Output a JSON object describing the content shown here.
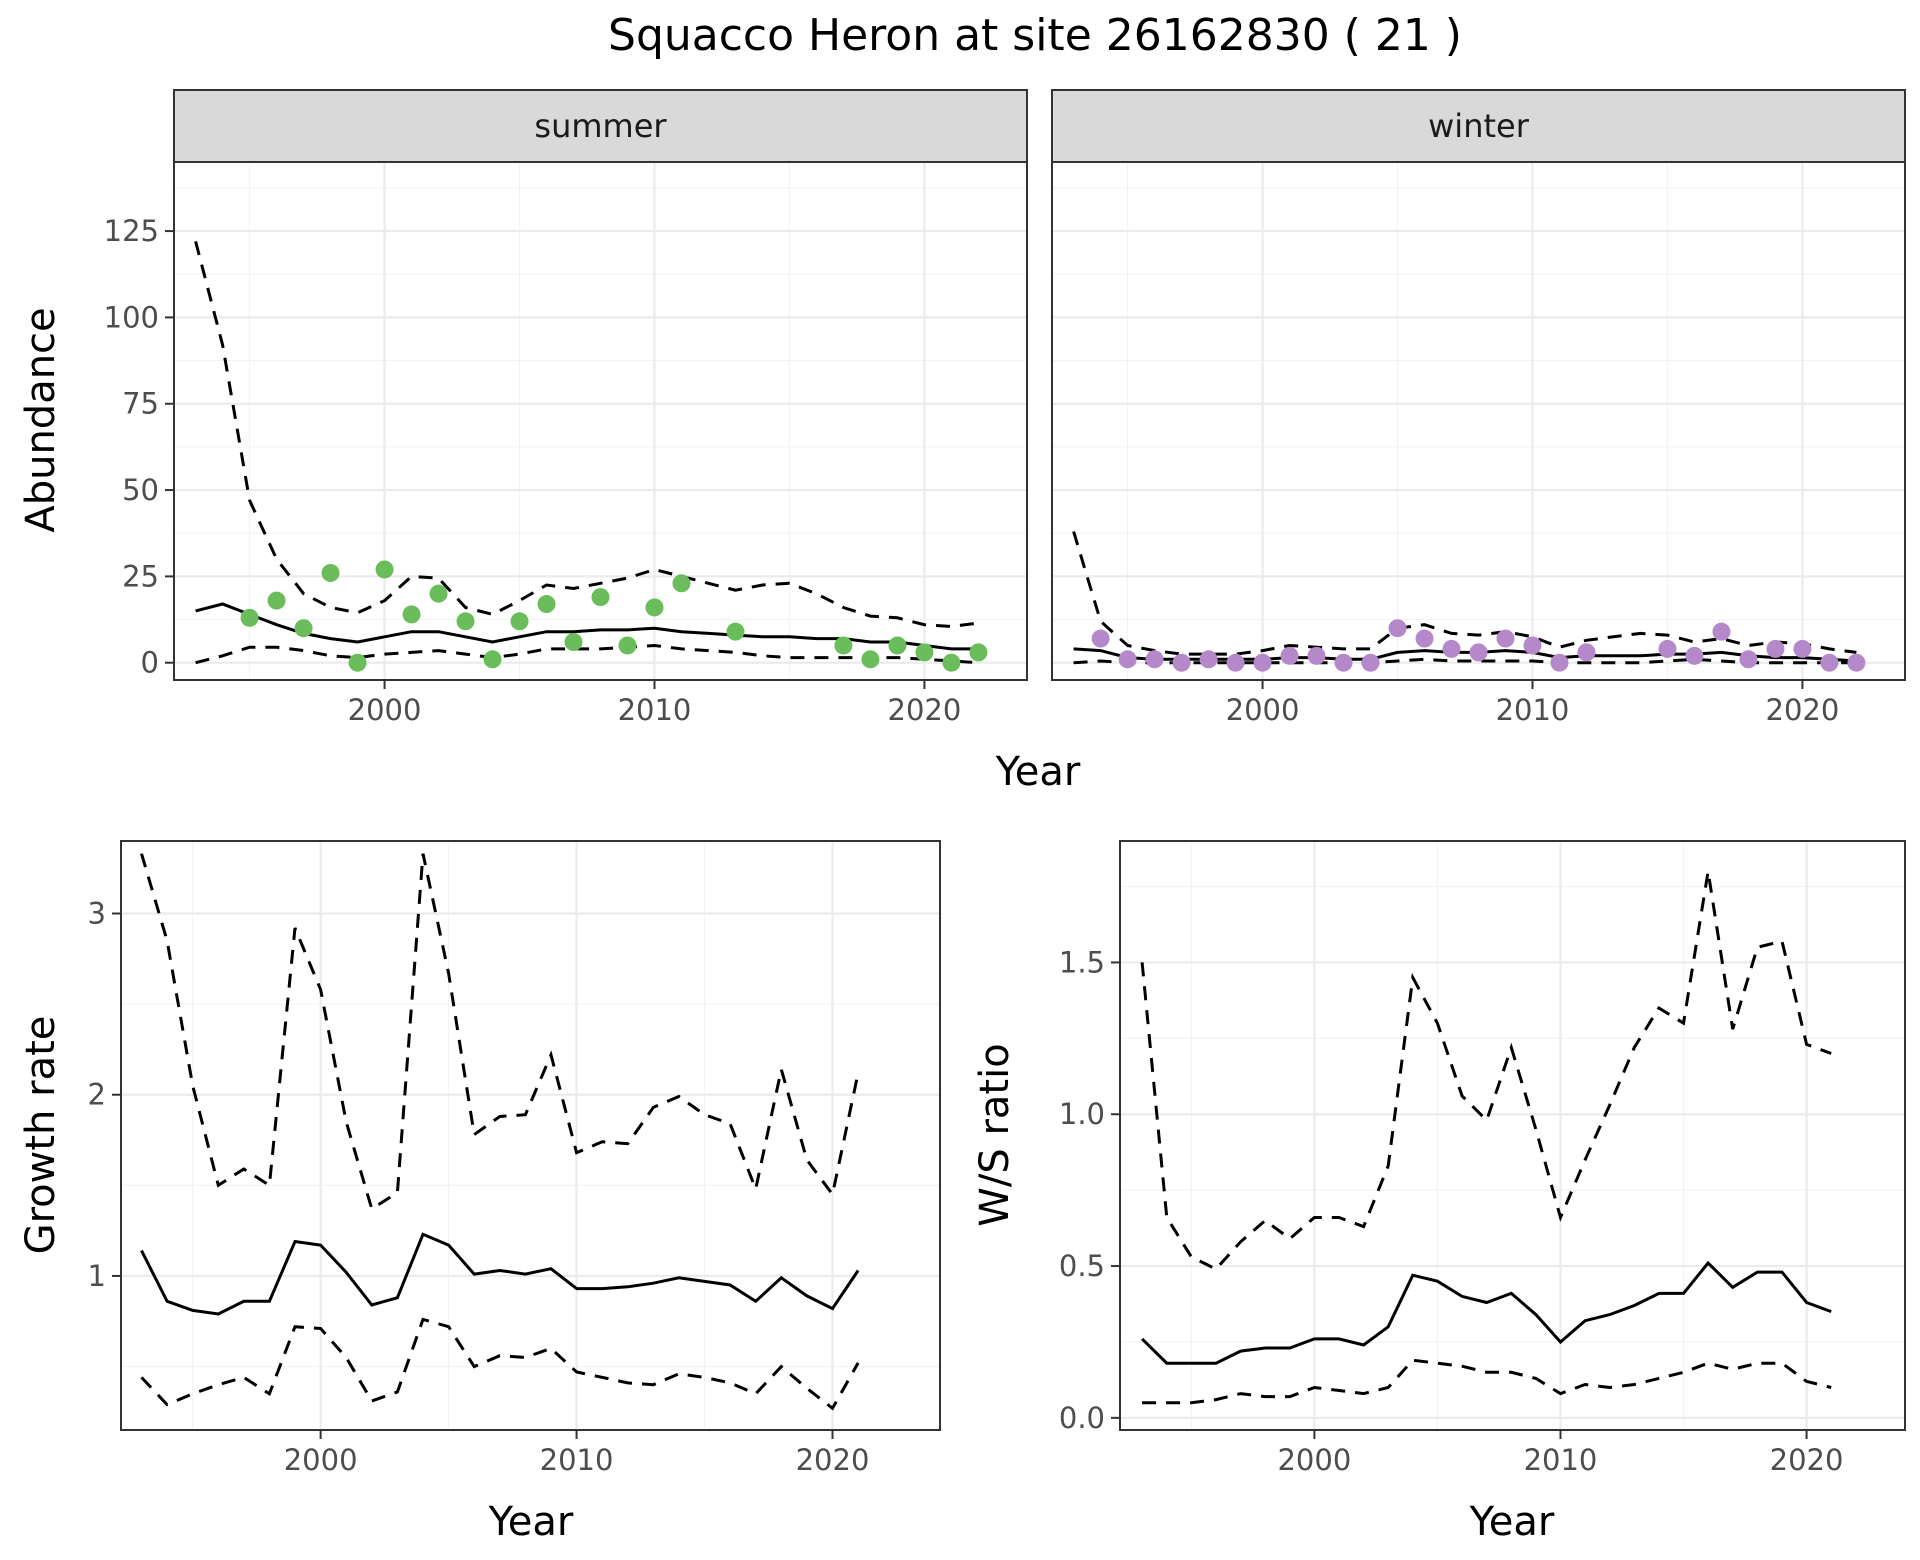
{
  "title": "Squacco Heron at site 26162830 ( 21 )",
  "chart_data": [
    {
      "type": "line",
      "panel": "summer",
      "strip": "summer",
      "ylabel": "Abundance",
      "xlabel": "Year",
      "xlim": [
        1992.2,
        2023.8
      ],
      "ylim": [
        -5,
        145
      ],
      "xticks": [
        2000,
        2010,
        2020
      ],
      "yticks": [
        0,
        25,
        50,
        75,
        100,
        125
      ],
      "grid": true,
      "point_color": "#6abd5a",
      "x": [
        1993,
        1994,
        1995,
        1996,
        1997,
        1998,
        1999,
        2000,
        2001,
        2002,
        2003,
        2004,
        2005,
        2006,
        2007,
        2008,
        2009,
        2010,
        2011,
        2012,
        2013,
        2014,
        2015,
        2016,
        2017,
        2018,
        2019,
        2020,
        2021,
        2022
      ],
      "series": [
        {
          "role": "estimate",
          "style": "solid",
          "values": [
            15,
            17,
            14,
            11,
            8.5,
            7,
            6,
            7.5,
            9,
            9,
            7.5,
            6,
            7.5,
            9,
            9,
            9.5,
            9.5,
            10,
            9,
            8.5,
            8,
            7.5,
            7.5,
            7,
            7,
            6,
            6,
            5,
            4,
            4
          ]
        },
        {
          "role": "upper",
          "style": "dashed",
          "values": [
            122,
            92,
            47,
            30,
            20,
            16,
            14.5,
            18,
            25,
            24.5,
            16,
            14,
            18,
            22.5,
            21.5,
            23,
            24.5,
            27,
            25,
            23,
            21,
            22.5,
            23,
            20,
            16,
            13.5,
            13,
            11,
            10.5,
            11.5
          ]
        },
        {
          "role": "lower",
          "style": "dashed",
          "values": [
            0,
            2,
            4.5,
            4.5,
            3.5,
            2,
            1.5,
            2.5,
            3,
            3.5,
            2.5,
            1.5,
            2.5,
            4,
            4,
            4,
            4.5,
            5,
            4,
            3.5,
            3,
            2,
            1.5,
            1.5,
            1.5,
            1.5,
            1.5,
            1,
            0.5,
            0
          ]
        },
        {
          "role": "observed",
          "style": "points",
          "x": [
            1995,
            1996,
            1997,
            1998,
            1999,
            2000,
            2001,
            2002,
            2003,
            2004,
            2005,
            2006,
            2007,
            2008,
            2009,
            2010,
            2011,
            2013,
            2017,
            2018,
            2019,
            2020,
            2021,
            2022
          ],
          "values": [
            13,
            18,
            10,
            26,
            0,
            27,
            14,
            20,
            12,
            1,
            12,
            17,
            6,
            19,
            5,
            16,
            23,
            9,
            5,
            1,
            5,
            3,
            0,
            3
          ]
        }
      ]
    },
    {
      "type": "line",
      "panel": "winter",
      "strip": "winter",
      "xlim": [
        1992.2,
        2023.8
      ],
      "ylim": [
        -5,
        145
      ],
      "xticks": [
        2000,
        2010,
        2020
      ],
      "grid": true,
      "point_color": "#b589c9",
      "x": [
        1993,
        1994,
        1995,
        1996,
        1997,
        1998,
        1999,
        2000,
        2001,
        2002,
        2003,
        2004,
        2005,
        2006,
        2007,
        2008,
        2009,
        2010,
        2011,
        2012,
        2013,
        2014,
        2015,
        2016,
        2017,
        2018,
        2019,
        2020,
        2021,
        2022
      ],
      "series": [
        {
          "role": "estimate",
          "style": "solid",
          "values": [
            4,
            3.5,
            1.5,
            1,
            1,
            1,
            1,
            1,
            1.5,
            1.5,
            1,
            1,
            3,
            3.5,
            3,
            3,
            3.5,
            3,
            1.5,
            2,
            2,
            2,
            2.5,
            2.5,
            3,
            2,
            1.5,
            1.5,
            1,
            0.5
          ]
        },
        {
          "role": "upper",
          "style": "dashed",
          "values": [
            38,
            12,
            5,
            3.5,
            2.5,
            2.5,
            2.5,
            3.5,
            5,
            4.5,
            4,
            4,
            10,
            11,
            8.5,
            8,
            9,
            7.5,
            4.5,
            6.5,
            7.5,
            8.5,
            8,
            6,
            7,
            5,
            6,
            5.5,
            4,
            3
          ]
        },
        {
          "role": "lower",
          "style": "dashed",
          "values": [
            0,
            0.5,
            0,
            0,
            0,
            0,
            0,
            0,
            0,
            0,
            0,
            0,
            0.5,
            1,
            0.5,
            0.5,
            0.5,
            0.5,
            0,
            0,
            0,
            0,
            0.5,
            1,
            0.5,
            0,
            0,
            0,
            0,
            0
          ]
        },
        {
          "role": "observed",
          "style": "points",
          "x": [
            1994,
            1995,
            1996,
            1997,
            1998,
            1999,
            2000,
            2001,
            2002,
            2003,
            2004,
            2005,
            2006,
            2007,
            2008,
            2009,
            2010,
            2011,
            2012,
            2015,
            2016,
            2017,
            2018,
            2019,
            2020,
            2021,
            2022
          ],
          "values": [
            7,
            1,
            1,
            0,
            1,
            0,
            0,
            2,
            2,
            0,
            0,
            10,
            7,
            4,
            3,
            7,
            5,
            0,
            3,
            4,
            2,
            9,
            1,
            4,
            4,
            0,
            0
          ]
        }
      ]
    },
    {
      "type": "line",
      "panel": "growth",
      "ylabel": "Growth rate",
      "xlabel": "Year",
      "xlim": [
        1992.2,
        2024.2
      ],
      "ylim": [
        0.15,
        3.4
      ],
      "xticks": [
        2000,
        2010,
        2020
      ],
      "yticks": [
        1,
        2,
        3
      ],
      "grid": true,
      "x": [
        1993,
        1994,
        1995,
        1996,
        1997,
        1998,
        1999,
        2000,
        2001,
        2002,
        2003,
        2004,
        2005,
        2006,
        2007,
        2008,
        2009,
        2010,
        2011,
        2012,
        2013,
        2014,
        2015,
        2016,
        2017,
        2018,
        2019,
        2020,
        2021
      ],
      "series": [
        {
          "role": "estimate",
          "style": "solid",
          "values": [
            1.14,
            0.86,
            0.81,
            0.79,
            0.86,
            0.86,
            1.19,
            1.17,
            1.02,
            0.84,
            0.88,
            1.23,
            1.17,
            1.01,
            1.03,
            1.01,
            1.04,
            0.93,
            0.93,
            0.94,
            0.96,
            0.99,
            0.97,
            0.95,
            0.86,
            0.99,
            0.89,
            0.82,
            1.03
          ]
        },
        {
          "role": "upper",
          "style": "dashed",
          "values": [
            3.33,
            2.85,
            2.05,
            1.5,
            1.59,
            1.5,
            2.92,
            2.58,
            1.85,
            1.37,
            1.46,
            3.33,
            2.67,
            1.78,
            1.88,
            1.89,
            2.22,
            1.68,
            1.74,
            1.73,
            1.93,
            1.99,
            1.89,
            1.84,
            1.48,
            2.14,
            1.64,
            1.45,
            2.12
          ]
        },
        {
          "role": "lower",
          "style": "dashed",
          "values": [
            0.44,
            0.29,
            0.35,
            0.4,
            0.44,
            0.35,
            0.72,
            0.71,
            0.55,
            0.31,
            0.36,
            0.76,
            0.72,
            0.5,
            0.56,
            0.55,
            0.6,
            0.47,
            0.44,
            0.41,
            0.4,
            0.46,
            0.44,
            0.41,
            0.35,
            0.5,
            0.38,
            0.27,
            0.52
          ]
        }
      ]
    },
    {
      "type": "line",
      "panel": "ratio",
      "ylabel": "W/S ratio",
      "xlabel": "Year",
      "xlim": [
        1992.1,
        2024.0
      ],
      "ylim": [
        -0.04,
        1.9
      ],
      "xticks": [
        2000,
        2010,
        2020
      ],
      "yticks": [
        0.0,
        0.5,
        1.0,
        1.5
      ],
      "ytick_labels": [
        "0.0",
        "0.5",
        "1.0",
        "1.5"
      ],
      "grid": true,
      "x": [
        1993,
        1994,
        1995,
        1996,
        1997,
        1998,
        1999,
        2000,
        2001,
        2002,
        2003,
        2004,
        2005,
        2006,
        2007,
        2008,
        2009,
        2010,
        2011,
        2012,
        2013,
        2014,
        2015,
        2016,
        2017,
        2018,
        2019,
        2020,
        2021
      ],
      "series": [
        {
          "role": "estimate",
          "style": "solid",
          "values": [
            0.26,
            0.18,
            0.18,
            0.18,
            0.22,
            0.23,
            0.23,
            0.26,
            0.26,
            0.24,
            0.3,
            0.47,
            0.45,
            0.4,
            0.38,
            0.41,
            0.34,
            0.25,
            0.32,
            0.34,
            0.37,
            0.41,
            0.41,
            0.51,
            0.43,
            0.48,
            0.48,
            0.38,
            0.35
          ]
        },
        {
          "role": "upper",
          "style": "dashed",
          "values": [
            1.5,
            0.66,
            0.53,
            0.49,
            0.58,
            0.65,
            0.59,
            0.66,
            0.66,
            0.63,
            0.83,
            1.45,
            1.3,
            1.06,
            0.98,
            1.22,
            0.95,
            0.66,
            0.85,
            1.03,
            1.22,
            1.35,
            1.3,
            1.8,
            1.28,
            1.55,
            1.57,
            1.23,
            1.2
          ]
        },
        {
          "role": "lower",
          "style": "dashed",
          "values": [
            0.05,
            0.05,
            0.05,
            0.06,
            0.08,
            0.07,
            0.07,
            0.1,
            0.09,
            0.08,
            0.1,
            0.19,
            0.18,
            0.17,
            0.15,
            0.15,
            0.13,
            0.08,
            0.11,
            0.1,
            0.11,
            0.13,
            0.15,
            0.18,
            0.16,
            0.18,
            0.18,
            0.12,
            0.1
          ]
        }
      ]
    }
  ]
}
